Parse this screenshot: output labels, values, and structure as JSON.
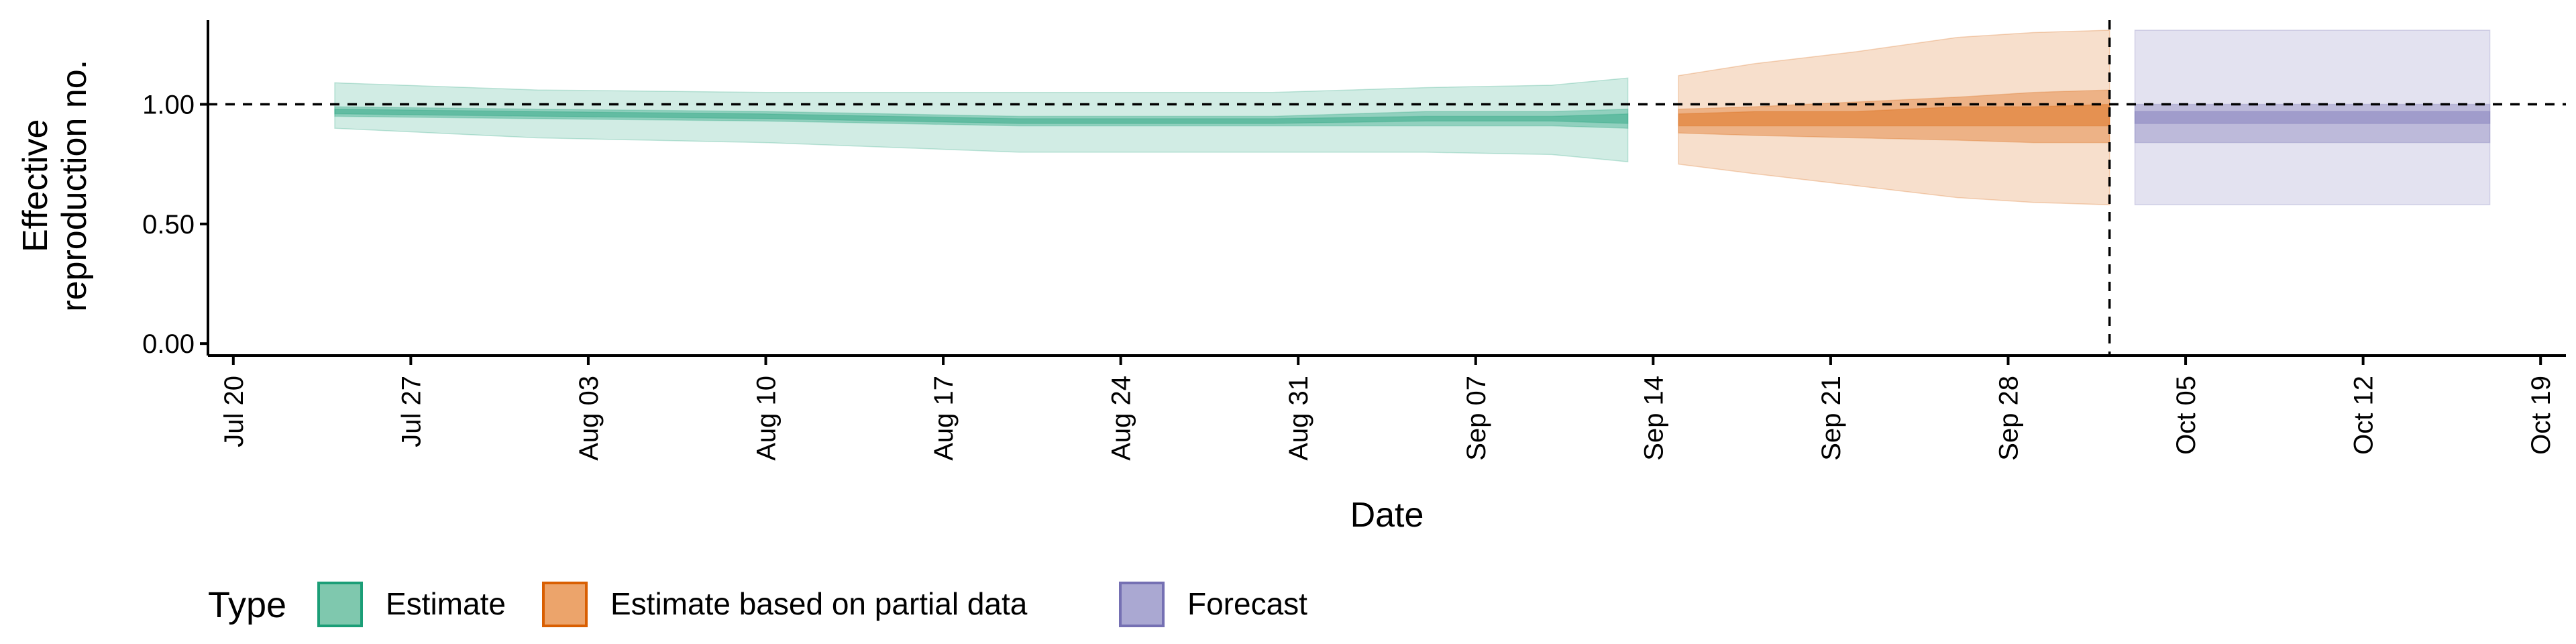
{
  "chart_data": {
    "type": "area",
    "title": "",
    "xlabel": "Date",
    "ylabel_lines": [
      "Effective",
      "reproduction no."
    ],
    "ylim": [
      -0.05,
      1.38
    ],
    "xlim": [
      "2020-07-19",
      "2020-10-20"
    ],
    "y_ticks": [
      0.0,
      0.5,
      1.0
    ],
    "y_tick_labels": [
      "0.00",
      "0.50",
      "1.00"
    ],
    "x_ticks": [
      "2020-07-20",
      "2020-07-27",
      "2020-08-03",
      "2020-08-10",
      "2020-08-17",
      "2020-08-24",
      "2020-08-31",
      "2020-09-07",
      "2020-09-14",
      "2020-09-21",
      "2020-09-28",
      "2020-10-05",
      "2020-10-12",
      "2020-10-19"
    ],
    "x_tick_labels": [
      "Jul 20",
      "Jul 27",
      "Aug 03",
      "Aug 10",
      "Aug 17",
      "Aug 24",
      "Aug 31",
      "Sep 07",
      "Sep 14",
      "Sep 21",
      "Sep 28",
      "Oct 05",
      "Oct 12",
      "Oct 19"
    ],
    "reference_hline": 1.0,
    "reference_vline": "2020-10-02",
    "grid": false,
    "legend": {
      "title": "Type",
      "position": "bottom",
      "entries": [
        {
          "label": "Estimate",
          "fill": "#7fc8ae",
          "border": "#1b9e77"
        },
        {
          "label": "Estimate based on partial data",
          "fill": "#eca46b",
          "border": "#d95f02"
        },
        {
          "label": "Forecast",
          "fill": "#aaa8d2",
          "border": "#7570b3"
        }
      ]
    },
    "series": [
      {
        "name": "Estimate",
        "color": "#1b9e77",
        "x": [
          "2020-07-24",
          "2020-08-01",
          "2020-08-10",
          "2020-08-20",
          "2020-08-30",
          "2020-09-05",
          "2020-09-10",
          "2020-09-13"
        ],
        "median": [
          0.97,
          0.96,
          0.95,
          0.93,
          0.93,
          0.94,
          0.94,
          0.94
        ],
        "lower_50": [
          0.95,
          0.94,
          0.93,
          0.91,
          0.91,
          0.91,
          0.91,
          0.9
        ],
        "upper_50": [
          0.99,
          0.98,
          0.97,
          0.95,
          0.95,
          0.97,
          0.97,
          0.98
        ],
        "lower_20": [
          0.96,
          0.95,
          0.94,
          0.92,
          0.92,
          0.93,
          0.93,
          0.92
        ],
        "upper_20": [
          0.98,
          0.97,
          0.96,
          0.94,
          0.94,
          0.95,
          0.95,
          0.96
        ],
        "lower_90": [
          0.9,
          0.86,
          0.84,
          0.8,
          0.8,
          0.8,
          0.79,
          0.76
        ],
        "upper_90": [
          1.09,
          1.06,
          1.05,
          1.05,
          1.05,
          1.07,
          1.08,
          1.11
        ]
      },
      {
        "name": "Estimate based on partial data",
        "color": "#d95f02",
        "x": [
          "2020-09-15",
          "2020-09-18",
          "2020-09-22",
          "2020-09-26",
          "2020-09-29",
          "2020-10-02"
        ],
        "median": [
          0.93,
          0.94,
          0.94,
          0.95,
          0.95,
          0.95
        ],
        "lower_50": [
          0.88,
          0.87,
          0.86,
          0.85,
          0.84,
          0.84
        ],
        "upper_50": [
          0.98,
          0.99,
          1.01,
          1.03,
          1.05,
          1.06
        ],
        "lower_20": [
          0.91,
          0.91,
          0.91,
          0.91,
          0.91,
          0.91
        ],
        "upper_20": [
          0.96,
          0.97,
          0.97,
          0.99,
          0.99,
          1.0
        ],
        "lower_90": [
          0.75,
          0.71,
          0.66,
          0.61,
          0.59,
          0.58
        ],
        "upper_90": [
          1.12,
          1.17,
          1.22,
          1.28,
          1.3,
          1.31
        ]
      },
      {
        "name": "Forecast",
        "color": "#7570b3",
        "x": [
          "2020-10-03",
          "2020-10-17"
        ],
        "median": [
          0.95,
          0.95
        ],
        "lower_50": [
          0.84,
          0.84
        ],
        "upper_50": [
          1.0,
          1.0
        ],
        "lower_20": [
          0.92,
          0.92
        ],
        "upper_20": [
          0.97,
          0.97
        ],
        "lower_90": [
          0.58,
          0.58
        ],
        "upper_90": [
          1.31,
          1.31
        ]
      }
    ]
  }
}
